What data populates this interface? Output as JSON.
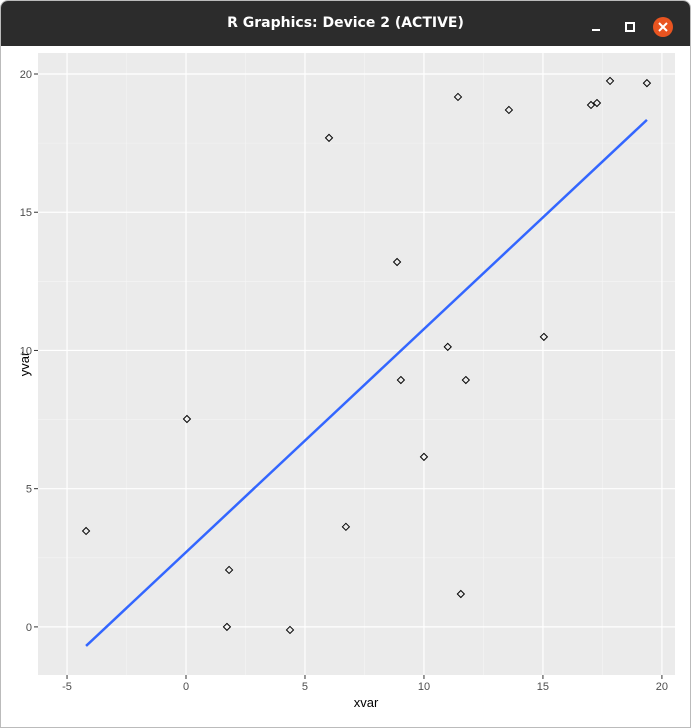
{
  "window": {
    "title": "R Graphics: Device 2 (ACTIVE)"
  },
  "chart_data": {
    "type": "scatter",
    "x": [
      -4.2,
      0.04,
      1.81,
      1.72,
      4.37,
      6.01,
      6.72,
      8.87,
      9.03,
      10.0,
      11.0,
      11.43,
      11.76,
      11.55,
      13.57,
      15.04,
      17.02,
      17.27,
      17.82,
      19.37
    ],
    "values": [
      3.47,
      7.52,
      2.06,
      0.0,
      -0.11,
      17.69,
      3.62,
      13.2,
      8.93,
      6.15,
      10.13,
      19.17,
      8.93,
      1.19,
      18.7,
      10.49,
      18.88,
      18.95,
      19.75,
      19.67
    ],
    "color": "#000000",
    "fit": {
      "type": "line",
      "x": [
        -4.2,
        19.37
      ],
      "values": [
        -0.69,
        18.34
      ],
      "color": "#3366ff"
    },
    "xlabel": "xvar",
    "ylabel": "yvar",
    "xlim": [
      -6.22,
      20.55
    ],
    "ylim": [
      -1.74,
      20.76
    ],
    "xticks": [
      -5,
      0,
      5,
      10,
      15,
      20
    ],
    "yticks": [
      0,
      5,
      10,
      15,
      20
    ],
    "grid": true
  }
}
